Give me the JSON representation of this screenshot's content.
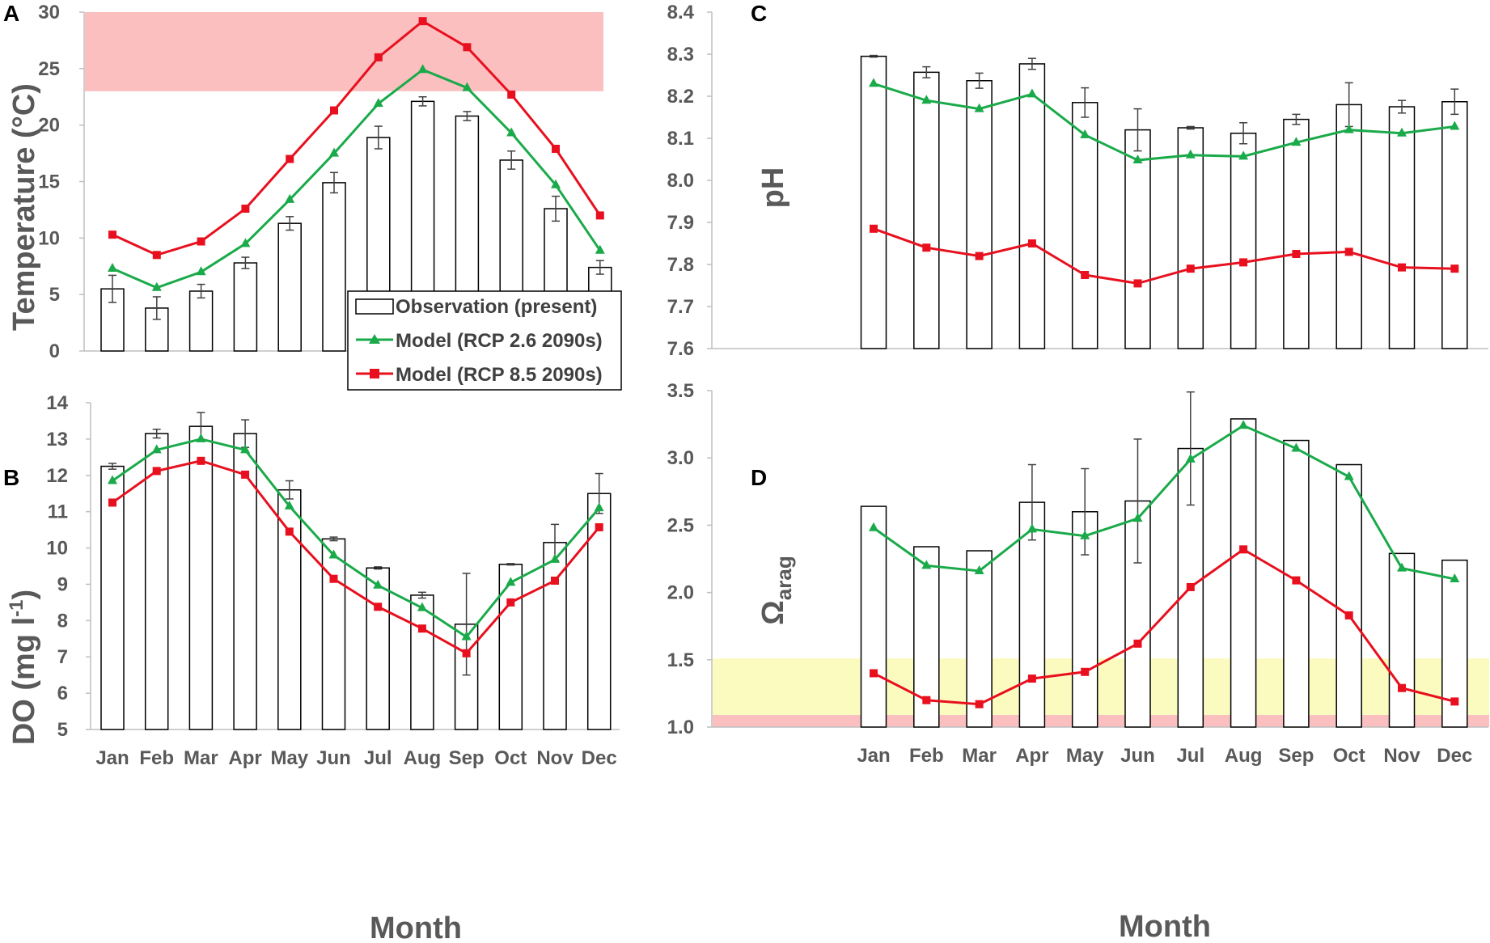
{
  "colors": {
    "model_26": "#1aaa4a",
    "model_85": "#e8101e",
    "bar_stroke": "#000000",
    "axis": "#bfbfbf",
    "err": "#404040",
    "threshold_red": "#fbbfc0",
    "threshold_yellow": "#fbfbc0",
    "text": "#595959"
  },
  "legend": {
    "observation": "Observation (present)",
    "rcp26": "Model (RCP 2.6 2090s)",
    "rcp85": "Model (RCP 8.5 2090s)"
  },
  "xlabel": "Month",
  "chart_data": [
    {
      "panel": "A",
      "type": "bar",
      "ylabel": "Temperature (°C)",
      "ylim": [
        0,
        30
      ],
      "yticks": [
        "0",
        "5",
        "10",
        "15",
        "20",
        "25",
        "30"
      ],
      "categories": [
        "Jan",
        "Feb",
        "Mar",
        "Apr",
        "May",
        "Jun",
        "Jul",
        "Aug",
        "Sep",
        "Oct",
        "Nov",
        "Dec"
      ],
      "observation": [
        5.5,
        3.8,
        5.3,
        7.8,
        11.3,
        14.9,
        18.9,
        22.1,
        20.8,
        16.9,
        12.6,
        7.4
      ],
      "observation_error": [
        1.2,
        1.0,
        0.6,
        0.5,
        0.6,
        0.9,
        1.0,
        0.4,
        0.4,
        0.8,
        1.1,
        0.6
      ],
      "series": [
        {
          "name": "Model (RCP 2.6 2090s)",
          "values": [
            7.3,
            5.6,
            7.0,
            9.5,
            13.4,
            17.5,
            21.9,
            24.9,
            23.3,
            19.3,
            14.7,
            8.9
          ]
        },
        {
          "name": "Model (RCP 8.5 2090s)",
          "values": [
            10.3,
            8.5,
            9.7,
            12.6,
            17.0,
            21.3,
            26.0,
            29.2,
            26.9,
            22.7,
            17.9,
            12.0
          ]
        }
      ],
      "threshold_band": {
        "from": 23,
        "to": 30,
        "color": "red"
      },
      "legend_position": "center"
    },
    {
      "panel": "B",
      "type": "bar",
      "ylabel": "DO (mg l-1)",
      "ylim": [
        5,
        14
      ],
      "yticks": [
        "5",
        "6",
        "7",
        "8",
        "9",
        "10",
        "11",
        "12",
        "13",
        "14"
      ],
      "categories": [
        "Jan",
        "Feb",
        "Mar",
        "Apr",
        "May",
        "Jun",
        "Jul",
        "Aug",
        "Sep",
        "Oct",
        "Nov",
        "Dec"
      ],
      "observation": [
        12.25,
        13.15,
        13.35,
        13.15,
        11.6,
        10.25,
        9.45,
        8.7,
        7.9,
        9.55,
        10.15,
        11.5
      ],
      "observation_error": [
        0.08,
        0.12,
        0.38,
        0.38,
        0.25,
        0.05,
        0.03,
        0.08,
        1.4,
        0.02,
        0.5,
        0.55
      ],
      "series": [
        {
          "name": "Model (RCP 2.6 2090s)",
          "values": [
            11.85,
            12.7,
            13.0,
            12.7,
            11.15,
            9.8,
            8.97,
            8.35,
            7.55,
            9.05,
            9.68,
            11.1
          ]
        },
        {
          "name": "Model (RCP 8.5 2090s)",
          "values": [
            11.25,
            12.12,
            12.4,
            12.02,
            10.45,
            9.15,
            8.38,
            7.78,
            7.1,
            8.5,
            9.1,
            10.57
          ]
        }
      ]
    },
    {
      "panel": "C",
      "type": "bar",
      "ylabel": "pH",
      "ylim": [
        7.6,
        8.4
      ],
      "yticks": [
        "7.6",
        "7.7",
        "7.8",
        "7.9",
        "8.0",
        "8.1",
        "8.2",
        "8.3",
        "8.4"
      ],
      "categories": [
        "Jan",
        "Feb",
        "Mar",
        "Apr",
        "May",
        "Jun",
        "Jul",
        "Aug",
        "Sep",
        "Oct",
        "Nov",
        "Dec"
      ],
      "observation": [
        8.295,
        8.257,
        8.237,
        8.277,
        8.185,
        8.12,
        8.125,
        8.112,
        8.145,
        8.18,
        8.175,
        8.187
      ],
      "observation_error": [
        0.002,
        0.013,
        0.018,
        0.013,
        0.035,
        0.05,
        0.003,
        0.025,
        0.012,
        0.052,
        0.015,
        0.03
      ],
      "series": [
        {
          "name": "Model (RCP 2.6 2090s)",
          "values": [
            8.23,
            8.19,
            8.17,
            8.205,
            8.108,
            8.048,
            8.06,
            8.057,
            8.09,
            8.12,
            8.112,
            8.128
          ]
        },
        {
          "name": "Model (RCP 8.5 2090s)",
          "values": [
            7.885,
            7.84,
            7.82,
            7.85,
            7.775,
            7.755,
            7.79,
            7.805,
            7.825,
            7.83,
            7.793,
            7.79
          ]
        }
      ]
    },
    {
      "panel": "D",
      "type": "bar",
      "ylabel": "Ωarag",
      "ylim": [
        1.0,
        3.5
      ],
      "yticks": [
        "1.0",
        "1.5",
        "2.0",
        "2.5",
        "3.0",
        "3.5"
      ],
      "categories": [
        "Jan",
        "Feb",
        "Mar",
        "Apr",
        "May",
        "Jun",
        "Jul",
        "Aug",
        "Sep",
        "Oct",
        "Nov",
        "Dec"
      ],
      "observation": [
        2.64,
        2.34,
        2.31,
        2.67,
        2.6,
        2.68,
        3.07,
        3.29,
        3.13,
        2.95,
        2.29,
        2.24
      ],
      "observation_error": [
        0.0,
        0.0,
        0.0,
        0.28,
        0.32,
        0.46,
        0.42,
        0.0,
        0.0,
        0.0,
        0.0,
        0.0
      ],
      "series": [
        {
          "name": "Model (RCP 2.6 2090s)",
          "values": [
            2.48,
            2.2,
            2.16,
            2.47,
            2.42,
            2.55,
            2.99,
            3.24,
            3.07,
            2.86,
            2.18,
            2.1
          ]
        },
        {
          "name": "Model (RCP 8.5 2090s)",
          "values": [
            1.4,
            1.2,
            1.17,
            1.36,
            1.41,
            1.62,
            2.04,
            2.32,
            2.09,
            1.83,
            1.29,
            1.19
          ]
        }
      ],
      "threshold_bands": [
        {
          "from": 1.09,
          "to": 1.51,
          "color": "yellow"
        },
        {
          "from": 1.0,
          "to": 1.09,
          "color": "red"
        }
      ]
    }
  ]
}
